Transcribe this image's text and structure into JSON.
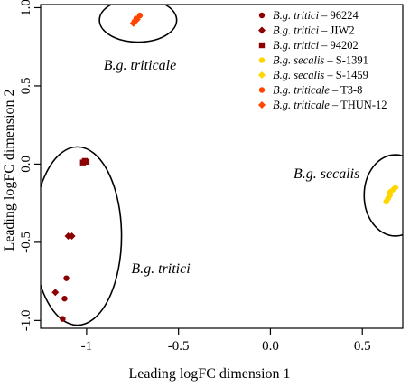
{
  "chart_data": {
    "type": "scatter",
    "title": "",
    "xlabel": "Leading logFC dimension 1",
    "ylabel": "Leading logFC dimension 2",
    "xlim": [
      -1.25,
      0.72
    ],
    "ylim": [
      -1.05,
      1.02
    ],
    "x_ticks": [
      -1,
      -0.5,
      0,
      0.5
    ],
    "x_tick_labels": [
      "-1",
      "-0.5",
      "0.0",
      "0.5"
    ],
    "y_ticks": [
      -1,
      -0.5,
      0,
      0.5,
      1
    ],
    "y_tick_labels": [
      "-1.0",
      "-0.5",
      "0.0",
      "0.5",
      "1.0"
    ],
    "grid": false,
    "legend_position": "top-right",
    "series": [
      {
        "name_species": "B.g. tritici",
        "name_strain": "– 96224",
        "marker": "circle",
        "color": "#8b0000",
        "points": [
          [
            -1.11,
            -0.73
          ],
          [
            -1.12,
            -0.86
          ],
          [
            -1.13,
            -0.99
          ]
        ]
      },
      {
        "name_species": "B.g. tritici",
        "name_strain": "– JIW2",
        "marker": "diamond",
        "color": "#8b0000",
        "points": [
          [
            -1.1,
            -0.46
          ],
          [
            -1.08,
            -0.46
          ],
          [
            -1.17,
            -0.82
          ]
        ]
      },
      {
        "name_species": "B.g. tritici",
        "name_strain": "– 94202",
        "marker": "square",
        "color": "#8b0000",
        "points": [
          [
            -1.02,
            0.01
          ],
          [
            -1.01,
            0.02
          ],
          [
            -1.0,
            0.015
          ]
        ]
      },
      {
        "name_species": "B.g. secalis",
        "name_strain": "– S-1391",
        "marker": "circle",
        "color": "#ffd700",
        "points": [
          [
            0.63,
            -0.24
          ],
          [
            0.64,
            -0.22
          ],
          [
            0.65,
            -0.2
          ]
        ]
      },
      {
        "name_species": "B.g. secalis",
        "name_strain": "– S-1459",
        "marker": "diamond",
        "color": "#ffd700",
        "points": [
          [
            0.65,
            -0.18
          ],
          [
            0.67,
            -0.16
          ],
          [
            0.68,
            -0.15
          ]
        ]
      },
      {
        "name_species": "B.g. triticale",
        "name_strain": "– T3-8",
        "marker": "circle",
        "color": "#ff4500",
        "points": [
          [
            -0.74,
            0.91
          ],
          [
            -0.73,
            0.93
          ],
          [
            -0.71,
            0.95
          ]
        ]
      },
      {
        "name_species": "B.g. triticale",
        "name_strain": "– THUN-12",
        "marker": "diamond",
        "color": "#ff4500",
        "points": [
          [
            -0.745,
            0.9
          ],
          [
            -0.735,
            0.915
          ],
          [
            -0.725,
            0.925
          ]
        ]
      }
    ],
    "clusters": [
      {
        "label": "B.g. triticale",
        "center": [
          -0.72,
          0.92
        ],
        "radius": [
          0.21,
          0.14
        ]
      },
      {
        "label": "B.g. tritici",
        "center": [
          -1.05,
          -0.46
        ],
        "radius": [
          0.24,
          0.57
        ]
      },
      {
        "label": "B.g. secalis",
        "center": [
          0.68,
          -0.2
        ],
        "radius": [
          0.17,
          0.26
        ]
      }
    ]
  }
}
